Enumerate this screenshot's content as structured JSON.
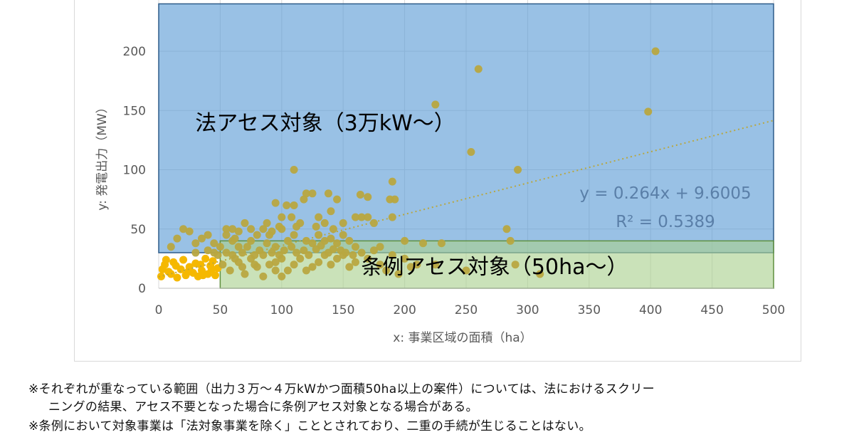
{
  "chart_data": {
    "type": "scatter",
    "title": "",
    "xlabel": "x: 事業区域の面積（ha）",
    "ylabel": "y: 発電出力（MW）",
    "xlim": [
      0,
      500
    ],
    "ylim": [
      0,
      240
    ],
    "x_ticks": [
      "0",
      "50",
      "100",
      "150",
      "200",
      "250",
      "300",
      "350",
      "400",
      "450",
      "500"
    ],
    "y_ticks": [
      "0",
      "50",
      "100",
      "150",
      "200"
    ],
    "grid": true,
    "colors": {
      "points": "#b8a740",
      "small_points": "#f5b800",
      "trendline": "#b8a740",
      "law_region": "#5b9bd5",
      "ordinance_region": "#a9d18e",
      "axis_text": "#595959"
    },
    "regions": [
      {
        "label": "法アセス対象（3万kW〜）",
        "x_range": [
          0,
          500
        ],
        "y_range": [
          30,
          240
        ],
        "color": "#5b9bd5"
      },
      {
        "label": "条例アセス対象（50ha〜）",
        "x_range": [
          50,
          500
        ],
        "y_range": [
          0,
          40
        ],
        "color": "#a9d18e"
      }
    ],
    "trendline": {
      "equation": "y = 0.264x + 9.6005",
      "r2": "R² = 0.5389",
      "slope": 0.264,
      "intercept": 9.6005
    },
    "small_points": [
      [
        2,
        10
      ],
      [
        5,
        20
      ],
      [
        8,
        14
      ],
      [
        10,
        12
      ],
      [
        12,
        22
      ],
      [
        15,
        9
      ],
      [
        18,
        16
      ],
      [
        20,
        24
      ],
      [
        22,
        11
      ],
      [
        25,
        18
      ],
      [
        28,
        13
      ],
      [
        30,
        21
      ],
      [
        32,
        10
      ],
      [
        35,
        15
      ],
      [
        38,
        25
      ],
      [
        40,
        12
      ],
      [
        42,
        19
      ],
      [
        44,
        23
      ],
      [
        46,
        11
      ],
      [
        48,
        17
      ],
      [
        3,
        16
      ],
      [
        6,
        24
      ],
      [
        14,
        19
      ],
      [
        24,
        14
      ],
      [
        34,
        20
      ],
      [
        36,
        11
      ],
      [
        43,
        16
      ]
    ],
    "points": [
      [
        225,
        155
      ],
      [
        260,
        185
      ],
      [
        404,
        200
      ],
      [
        398,
        149
      ],
      [
        254,
        115
      ],
      [
        292,
        100
      ],
      [
        110,
        100
      ],
      [
        283,
        50
      ],
      [
        286,
        40
      ],
      [
        190,
        90
      ],
      [
        192,
        75
      ],
      [
        188,
        75
      ],
      [
        164,
        79
      ],
      [
        170,
        77
      ],
      [
        165,
        60
      ],
      [
        170,
        60
      ],
      [
        175,
        55
      ],
      [
        190,
        60
      ],
      [
        200,
        40
      ],
      [
        230,
        38
      ],
      [
        215,
        38
      ],
      [
        110,
        70
      ],
      [
        118,
        75
      ],
      [
        120,
        80
      ],
      [
        125,
        80
      ],
      [
        138,
        80
      ],
      [
        145,
        75
      ],
      [
        100,
        60
      ],
      [
        104,
        70
      ],
      [
        95,
        72
      ],
      [
        140,
        65
      ],
      [
        150,
        55
      ],
      [
        160,
        60
      ],
      [
        130,
        60
      ],
      [
        115,
        55
      ],
      [
        100,
        50
      ],
      [
        90,
        45
      ],
      [
        85,
        50
      ],
      [
        80,
        45
      ],
      [
        70,
        55
      ],
      [
        60,
        50
      ],
      [
        55,
        45
      ],
      [
        60,
        40
      ],
      [
        65,
        35
      ],
      [
        75,
        40
      ],
      [
        95,
        35
      ],
      [
        105,
        40
      ],
      [
        110,
        45
      ],
      [
        120,
        40
      ],
      [
        125,
        38
      ],
      [
        130,
        45
      ],
      [
        135,
        40
      ],
      [
        140,
        42
      ],
      [
        145,
        38
      ],
      [
        150,
        45
      ],
      [
        155,
        40
      ],
      [
        160,
        35
      ],
      [
        165,
        30
      ],
      [
        175,
        32
      ],
      [
        180,
        35
      ],
      [
        190,
        28
      ],
      [
        200,
        25
      ],
      [
        210,
        20
      ],
      [
        225,
        20
      ],
      [
        250,
        15
      ],
      [
        290,
        20
      ],
      [
        310,
        12
      ],
      [
        52,
        20
      ],
      [
        58,
        15
      ],
      [
        65,
        22
      ],
      [
        70,
        12
      ],
      [
        75,
        25
      ],
      [
        80,
        18
      ],
      [
        85,
        10
      ],
      [
        90,
        20
      ],
      [
        95,
        15
      ],
      [
        100,
        25
      ],
      [
        105,
        15
      ],
      [
        110,
        20
      ],
      [
        115,
        25
      ],
      [
        120,
        15
      ],
      [
        125,
        18
      ],
      [
        130,
        22
      ],
      [
        135,
        28
      ],
      [
        140,
        20
      ],
      [
        145,
        25
      ],
      [
        150,
        28
      ],
      [
        155,
        18
      ],
      [
        160,
        22
      ],
      [
        170,
        25
      ],
      [
        180,
        20
      ],
      [
        185,
        15
      ],
      [
        195,
        12
      ],
      [
        205,
        18
      ],
      [
        50,
        35
      ],
      [
        55,
        30
      ],
      [
        60,
        28
      ],
      [
        62,
        42
      ],
      [
        68,
        30
      ],
      [
        72,
        35
      ],
      [
        78,
        28
      ],
      [
        82,
        32
      ],
      [
        88,
        38
      ],
      [
        92,
        30
      ],
      [
        98,
        28
      ],
      [
        102,
        32
      ],
      [
        108,
        35
      ],
      [
        112,
        30
      ],
      [
        118,
        32
      ],
      [
        122,
        28
      ],
      [
        128,
        33
      ],
      [
        132,
        36
      ],
      [
        138,
        30
      ],
      [
        142,
        33
      ],
      [
        148,
        32
      ],
      [
        152,
        30
      ],
      [
        158,
        28
      ],
      [
        55,
        50
      ],
      [
        65,
        48
      ],
      [
        75,
        50
      ],
      [
        88,
        55
      ],
      [
        92,
        48
      ],
      [
        98,
        52
      ],
      [
        108,
        60
      ],
      [
        112,
        52
      ],
      [
        128,
        52
      ],
      [
        135,
        55
      ],
      [
        142,
        50
      ],
      [
        20,
        50
      ],
      [
        25,
        48
      ],
      [
        30,
        38
      ],
      [
        35,
        42
      ],
      [
        40,
        45
      ],
      [
        45,
        38
      ],
      [
        15,
        42
      ],
      [
        10,
        35
      ],
      [
        48,
        28
      ],
      [
        45,
        30
      ],
      [
        40,
        32
      ],
      [
        30,
        30
      ],
      [
        100,
        10
      ],
      [
        95,
        22
      ],
      [
        85,
        28
      ],
      [
        78,
        20
      ],
      [
        68,
        18
      ],
      [
        62,
        25
      ]
    ]
  },
  "annotations": {
    "law_label": "法アセス対象（3万kW〜）",
    "ordinance_label": "条例アセス対象（50ha〜）",
    "equation": "y = 0.264x + 9.6005",
    "r2": "R² = 0.5389"
  },
  "notes": [
    "※それぞれが重なっている範囲（出力３万〜４万kWかつ面積50ha以上の案件）については、法におけるスクリー",
    "ニングの結果、アセス不要となった場合に条例アセス対象となる場合がある。",
    "※条例において対象事業は「法対象事業を除く」こととされており、二重の手続が生じることはない。"
  ]
}
